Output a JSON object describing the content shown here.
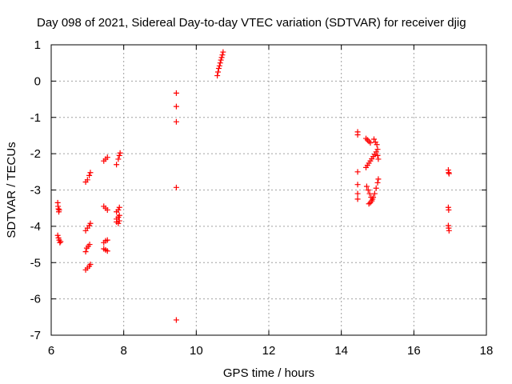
{
  "chart_data": {
    "type": "scatter",
    "title": "Day 098 of 2021, Sidereal Day-to-day VTEC variation (SDTVAR) for receiver djig",
    "xlabel": "GPS time / hours",
    "ylabel": "SDTVAR / TECUs",
    "xlim": [
      6,
      18
    ],
    "ylim": [
      -7,
      1
    ],
    "xticks": [
      6,
      8,
      10,
      12,
      14,
      16,
      18
    ],
    "yticks": [
      1,
      0,
      -1,
      -2,
      -3,
      -4,
      -5,
      -6,
      -7
    ],
    "grid": true,
    "marker": "+",
    "colors": {
      "points": "#ff0000",
      "axis": "#000000",
      "grid": "#a0a0a0"
    },
    "series": [
      {
        "name": "SDTVAR",
        "points": [
          [
            6.18,
            -3.35
          ],
          [
            6.19,
            -3.45
          ],
          [
            6.2,
            -3.52
          ],
          [
            6.21,
            -3.6
          ],
          [
            6.22,
            -3.55
          ],
          [
            6.18,
            -4.25
          ],
          [
            6.2,
            -4.32
          ],
          [
            6.22,
            -4.38
          ],
          [
            6.24,
            -4.45
          ],
          [
            6.26,
            -4.42
          ],
          [
            6.95,
            -2.78
          ],
          [
            7.0,
            -2.72
          ],
          [
            7.05,
            -2.6
          ],
          [
            7.08,
            -2.52
          ],
          [
            6.95,
            -4.12
          ],
          [
            7.0,
            -4.05
          ],
          [
            7.05,
            -3.98
          ],
          [
            7.08,
            -3.92
          ],
          [
            6.95,
            -4.7
          ],
          [
            6.98,
            -4.6
          ],
          [
            7.02,
            -4.55
          ],
          [
            7.06,
            -4.5
          ],
          [
            6.95,
            -5.2
          ],
          [
            7.0,
            -5.15
          ],
          [
            7.05,
            -5.1
          ],
          [
            7.08,
            -5.05
          ],
          [
            7.45,
            -2.2
          ],
          [
            7.5,
            -2.15
          ],
          [
            7.55,
            -2.1
          ],
          [
            7.45,
            -3.45
          ],
          [
            7.5,
            -3.5
          ],
          [
            7.55,
            -3.55
          ],
          [
            7.45,
            -4.45
          ],
          [
            7.5,
            -4.4
          ],
          [
            7.55,
            -4.38
          ],
          [
            7.45,
            -4.62
          ],
          [
            7.5,
            -4.65
          ],
          [
            7.55,
            -4.68
          ],
          [
            7.8,
            -2.3
          ],
          [
            7.85,
            -2.15
          ],
          [
            7.88,
            -2.05
          ],
          [
            7.9,
            -1.98
          ],
          [
            7.8,
            -3.6
          ],
          [
            7.85,
            -3.55
          ],
          [
            7.88,
            -3.48
          ],
          [
            7.8,
            -3.8
          ],
          [
            7.85,
            -3.75
          ],
          [
            7.88,
            -3.7
          ],
          [
            7.8,
            -3.88
          ],
          [
            7.85,
            -3.92
          ],
          [
            7.88,
            -3.85
          ],
          [
            9.45,
            -0.33
          ],
          [
            9.45,
            -0.7
          ],
          [
            9.45,
            -1.12
          ],
          [
            9.45,
            -2.93
          ],
          [
            9.45,
            -6.58
          ],
          [
            10.58,
            0.15
          ],
          [
            10.6,
            0.25
          ],
          [
            10.62,
            0.35
          ],
          [
            10.64,
            0.42
          ],
          [
            10.66,
            0.5
          ],
          [
            10.68,
            0.58
          ],
          [
            10.7,
            0.65
          ],
          [
            10.72,
            0.72
          ],
          [
            10.74,
            0.8
          ],
          [
            14.45,
            -1.4
          ],
          [
            14.45,
            -1.48
          ],
          [
            14.45,
            -2.5
          ],
          [
            14.45,
            -2.85
          ],
          [
            14.45,
            -3.1
          ],
          [
            14.45,
            -3.25
          ],
          [
            14.68,
            -1.58
          ],
          [
            14.72,
            -1.62
          ],
          [
            14.76,
            -1.66
          ],
          [
            14.8,
            -1.7
          ],
          [
            14.68,
            -2.38
          ],
          [
            14.72,
            -2.32
          ],
          [
            14.76,
            -2.26
          ],
          [
            14.8,
            -2.2
          ],
          [
            14.84,
            -2.14
          ],
          [
            14.88,
            -2.08
          ],
          [
            14.92,
            -2.02
          ],
          [
            14.96,
            -1.95
          ],
          [
            15.0,
            -1.88
          ],
          [
            14.7,
            -2.9
          ],
          [
            14.74,
            -3.0
          ],
          [
            14.78,
            -3.1
          ],
          [
            14.82,
            -3.2
          ],
          [
            14.86,
            -3.25
          ],
          [
            14.76,
            -3.38
          ],
          [
            14.8,
            -3.35
          ],
          [
            14.84,
            -3.3
          ],
          [
            14.88,
            -3.2
          ],
          [
            14.92,
            -3.1
          ],
          [
            14.96,
            -2.95
          ],
          [
            15.0,
            -2.8
          ],
          [
            15.02,
            -2.7
          ],
          [
            14.9,
            -1.6
          ],
          [
            14.94,
            -1.68
          ],
          [
            14.98,
            -1.75
          ],
          [
            15.0,
            -2.05
          ],
          [
            15.02,
            -2.15
          ],
          [
            16.95,
            -2.45
          ],
          [
            16.96,
            -2.52
          ],
          [
            16.97,
            -2.55
          ],
          [
            16.95,
            -3.48
          ],
          [
            16.96,
            -3.55
          ],
          [
            16.95,
            -3.98
          ],
          [
            16.96,
            -4.05
          ],
          [
            16.97,
            -4.12
          ]
        ]
      }
    ]
  }
}
